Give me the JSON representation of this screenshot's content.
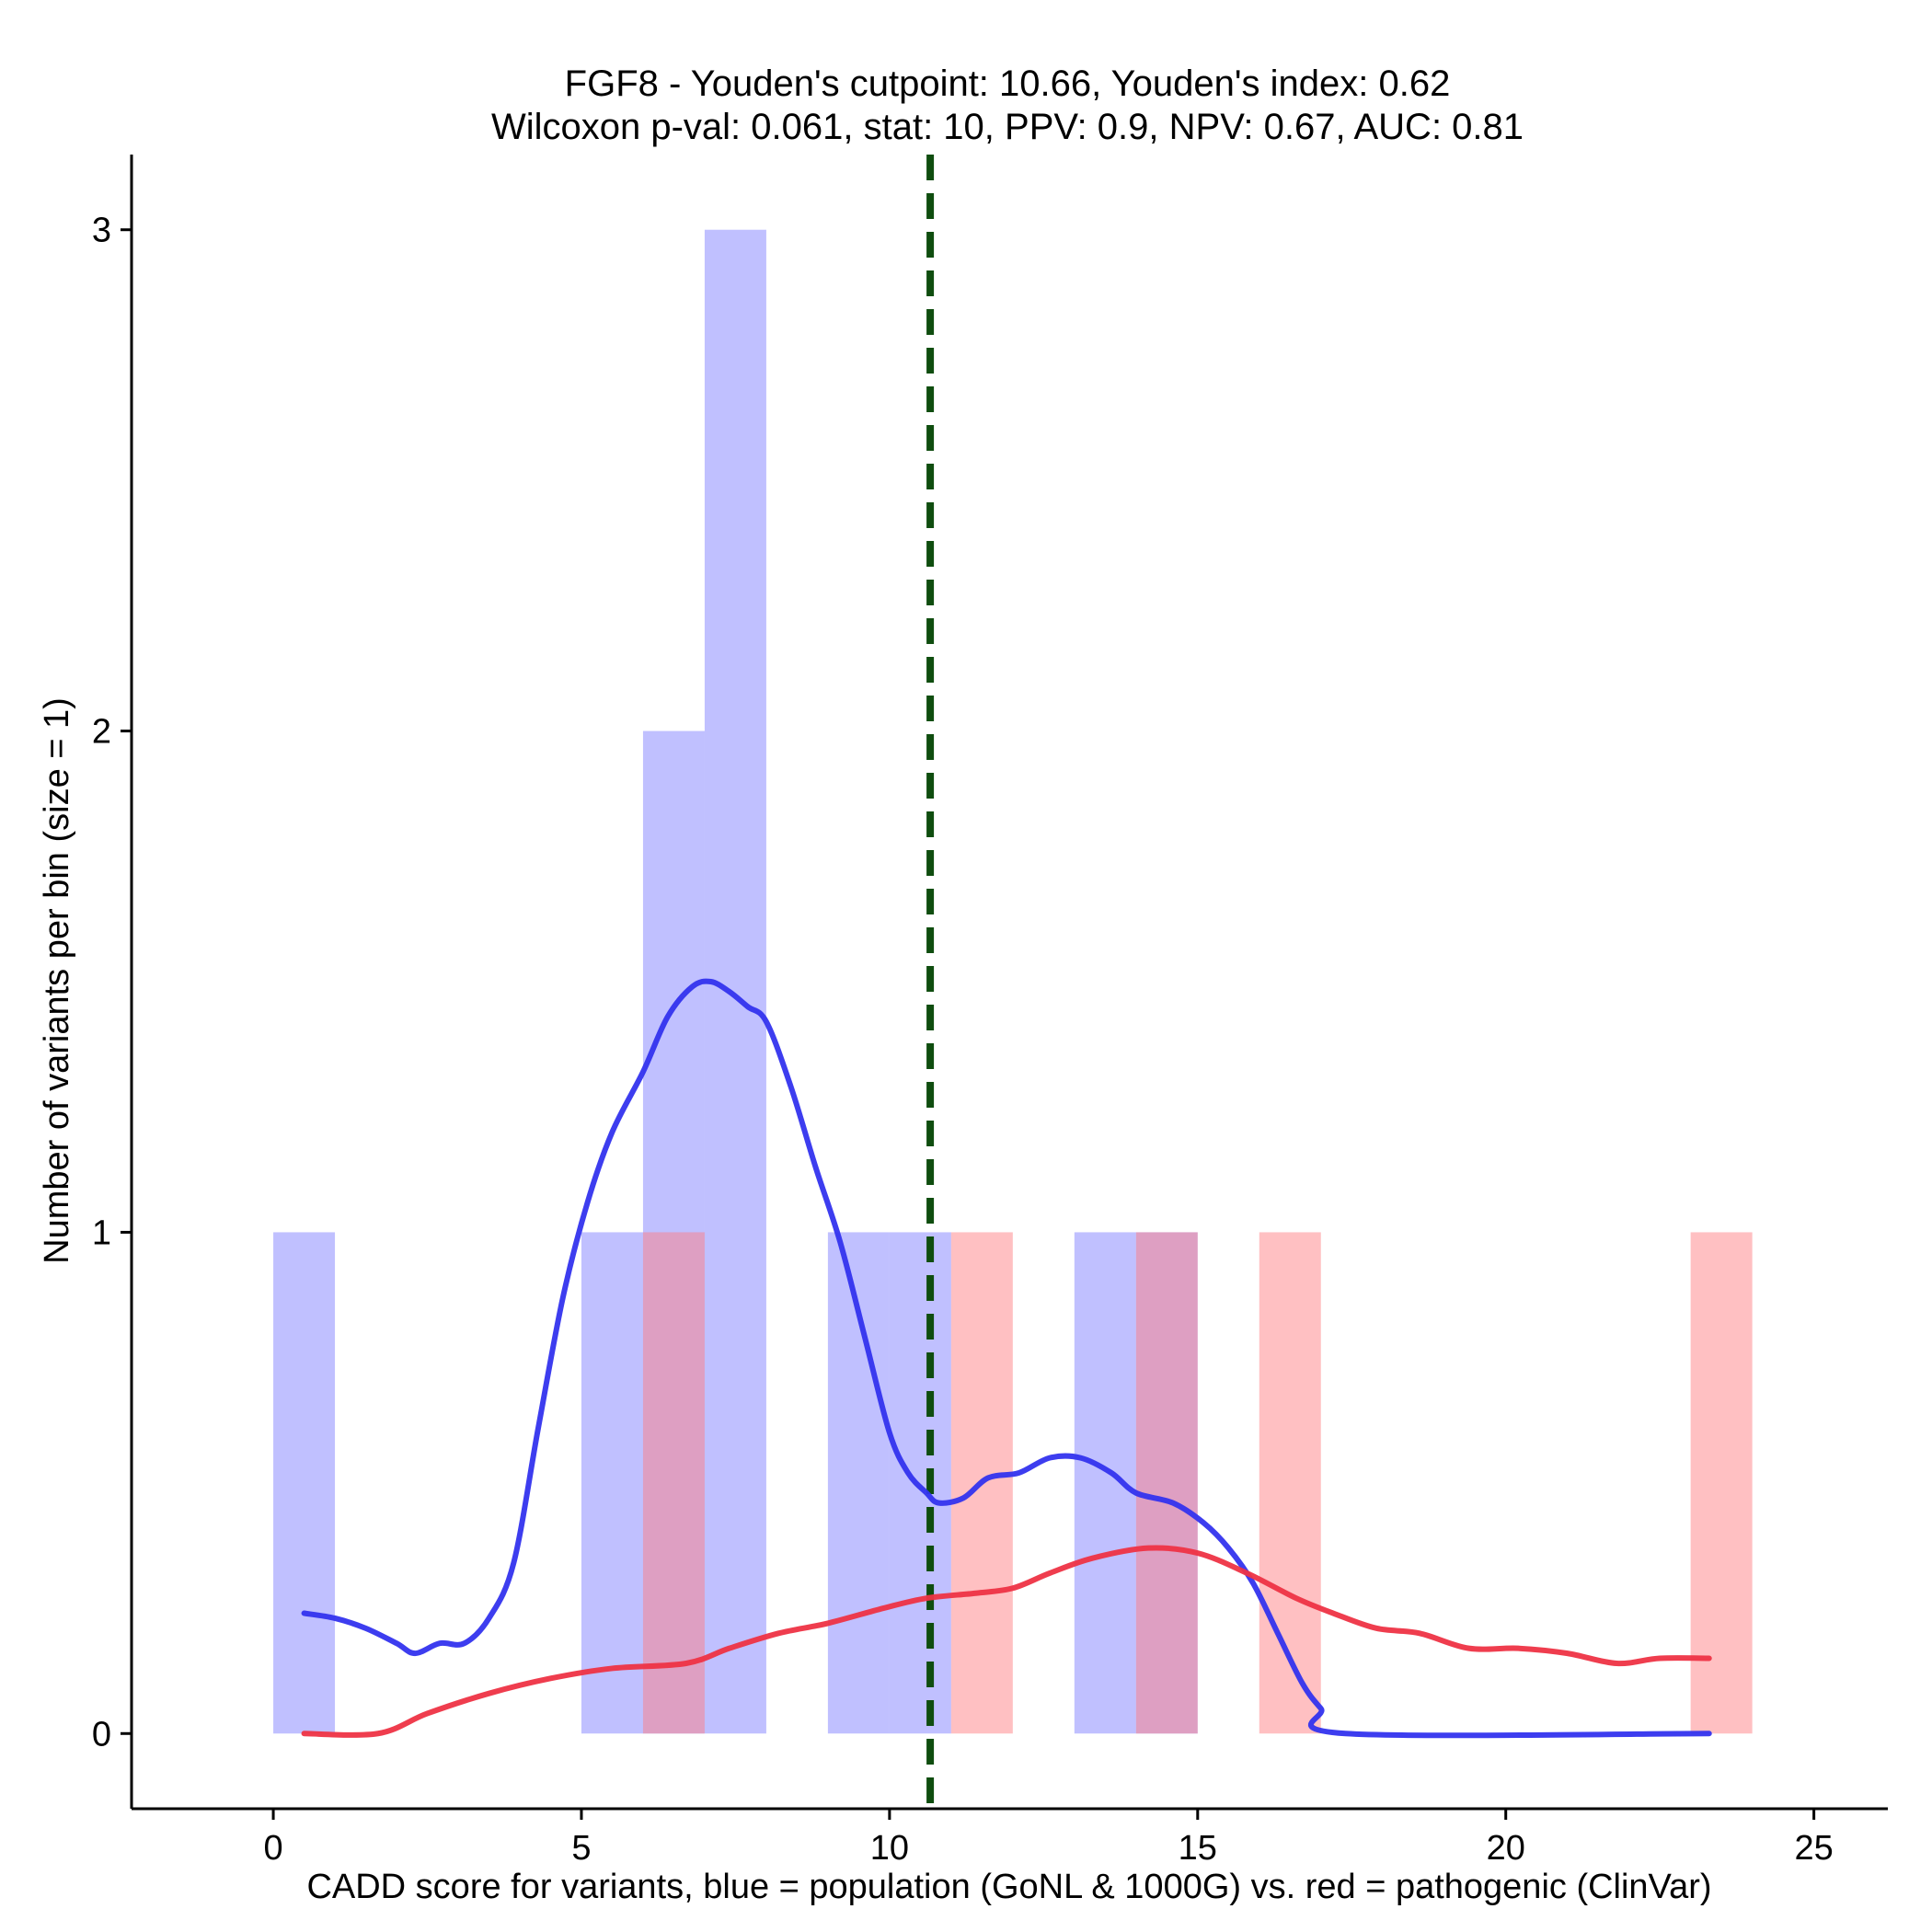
{
  "chart_data": {
    "type": "histogram-density",
    "title": "FGF8 - Youden's cutpoint: 10.66, Youden's index: 0.62",
    "subtitle": "Wilcoxon p-val: 0.061, stat: 10, PPV: 0.9, NPV: 0.67, AUC: 0.81",
    "xlabel": "CADD score for variants, blue = population (GoNL & 1000G) vs. red = pathogenic (ClinVar)",
    "ylabel": "Number of variants per bin (size = 1)",
    "xlim": [
      -2.3,
      26.2
    ],
    "ylim": [
      -0.15,
      3.15
    ],
    "xticks": [
      0,
      5,
      10,
      15,
      20,
      25
    ],
    "yticks": [
      0,
      1,
      2,
      3
    ],
    "bin_width": 1,
    "cutpoint": 10.66,
    "colors": {
      "population": "#7b7bff",
      "pathogenic": "#ff7b7f",
      "population_line": "#3333ee",
      "pathogenic_line": "#ee3344",
      "cutpoint_line": "#0f4d0f"
    },
    "series": [
      {
        "name": "population (GoNL & 1000G)",
        "bins": [
          {
            "start": 0,
            "count": 1
          },
          {
            "start": 5,
            "count": 1
          },
          {
            "start": 6,
            "count": 2
          },
          {
            "start": 7,
            "count": 3
          },
          {
            "start": 9,
            "count": 1
          },
          {
            "start": 10,
            "count": 1
          },
          {
            "start": 13,
            "count": 1
          },
          {
            "start": 14,
            "count": 1
          }
        ],
        "density": [
          [
            0.5,
            0.24
          ],
          [
            1.0,
            0.23
          ],
          [
            1.5,
            0.21
          ],
          [
            2.0,
            0.18
          ],
          [
            2.3,
            0.16
          ],
          [
            2.7,
            0.18
          ],
          [
            3.1,
            0.18
          ],
          [
            3.5,
            0.23
          ],
          [
            3.9,
            0.34
          ],
          [
            4.3,
            0.61
          ],
          [
            4.7,
            0.87
          ],
          [
            5.1,
            1.06
          ],
          [
            5.5,
            1.2
          ],
          [
            6.0,
            1.32
          ],
          [
            6.4,
            1.43
          ],
          [
            6.8,
            1.49
          ],
          [
            7.1,
            1.5
          ],
          [
            7.4,
            1.48
          ],
          [
            7.7,
            1.45
          ],
          [
            8.0,
            1.42
          ],
          [
            8.4,
            1.29
          ],
          [
            8.8,
            1.13
          ],
          [
            9.2,
            0.98
          ],
          [
            9.6,
            0.79
          ],
          [
            10.0,
            0.6
          ],
          [
            10.3,
            0.52
          ],
          [
            10.6,
            0.48
          ],
          [
            10.8,
            0.46
          ],
          [
            11.2,
            0.47
          ],
          [
            11.6,
            0.51
          ],
          [
            12.1,
            0.52
          ],
          [
            12.6,
            0.55
          ],
          [
            13.1,
            0.55
          ],
          [
            13.6,
            0.52
          ],
          [
            14.0,
            0.48
          ],
          [
            14.6,
            0.46
          ],
          [
            15.1,
            0.42
          ],
          [
            15.5,
            0.37
          ],
          [
            15.9,
            0.3
          ],
          [
            16.3,
            0.2
          ],
          [
            16.7,
            0.1
          ],
          [
            17.0,
            0.05
          ],
          [
            17.4,
            0.0
          ],
          [
            23.3,
            0.0
          ]
        ]
      },
      {
        "name": "pathogenic (ClinVar)",
        "bins": [
          {
            "start": 6,
            "count": 1
          },
          {
            "start": 11,
            "count": 1
          },
          {
            "start": 14,
            "count": 1
          },
          {
            "start": 16,
            "count": 1
          },
          {
            "start": 23,
            "count": 1
          }
        ],
        "density": [
          [
            0.5,
            0.0
          ],
          [
            1.7,
            0.0
          ],
          [
            2.5,
            0.04
          ],
          [
            3.5,
            0.08
          ],
          [
            4.5,
            0.11
          ],
          [
            5.5,
            0.13
          ],
          [
            6.7,
            0.14
          ],
          [
            7.4,
            0.17
          ],
          [
            8.2,
            0.2
          ],
          [
            9.0,
            0.22
          ],
          [
            9.9,
            0.25
          ],
          [
            10.6,
            0.27
          ],
          [
            11.4,
            0.28
          ],
          [
            12.0,
            0.29
          ],
          [
            12.6,
            0.32
          ],
          [
            13.3,
            0.35
          ],
          [
            14.2,
            0.37
          ],
          [
            15.0,
            0.36
          ],
          [
            15.8,
            0.32
          ],
          [
            16.6,
            0.27
          ],
          [
            17.2,
            0.24
          ],
          [
            17.9,
            0.21
          ],
          [
            18.6,
            0.2
          ],
          [
            19.4,
            0.17
          ],
          [
            20.2,
            0.17
          ],
          [
            21.0,
            0.16
          ],
          [
            21.8,
            0.14
          ],
          [
            22.5,
            0.15
          ],
          [
            23.3,
            0.15
          ]
        ]
      }
    ]
  }
}
